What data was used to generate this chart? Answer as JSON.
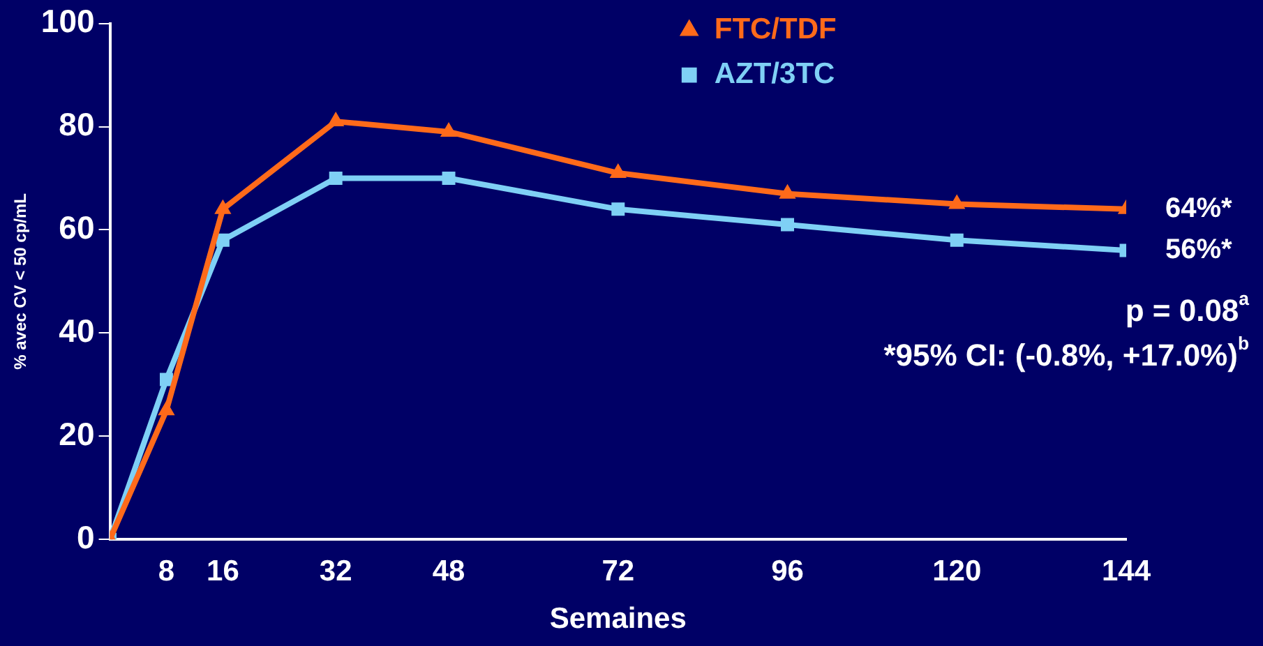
{
  "chart_data": {
    "type": "line",
    "xlabel": "Semaines",
    "ylabel": "% avec CV < 50 cp/mL",
    "x": [
      0,
      8,
      16,
      32,
      48,
      72,
      96,
      120,
      144
    ],
    "xlim": [
      0,
      144
    ],
    "xticks": [
      8,
      16,
      32,
      48,
      72,
      96,
      120,
      144
    ],
    "ylim": [
      0,
      100
    ],
    "yticks": [
      0,
      20,
      40,
      60,
      80,
      100
    ],
    "grid": false,
    "legend": "top",
    "line_style": "solid",
    "series": [
      {
        "name": "FTC/TDF",
        "color": "#ff6a1a",
        "marker": "triangle",
        "values": [
          0,
          25,
          64,
          81,
          79,
          71,
          67,
          65,
          64
        ]
      },
      {
        "name": "AZT/3TC",
        "color": "#7fd0f5",
        "marker": "square",
        "values": [
          0,
          31,
          58,
          70,
          70,
          64,
          61,
          58,
          56
        ]
      }
    ],
    "annotations": [
      {
        "text": "64%*",
        "x": 144,
        "y": 64
      },
      {
        "text": "56%*",
        "x": 144,
        "y": 56
      },
      "p = 0.08$^{a}$",
      "*95% CI: (-0.8%, +17.0%)$^{b}$"
    ]
  }
}
